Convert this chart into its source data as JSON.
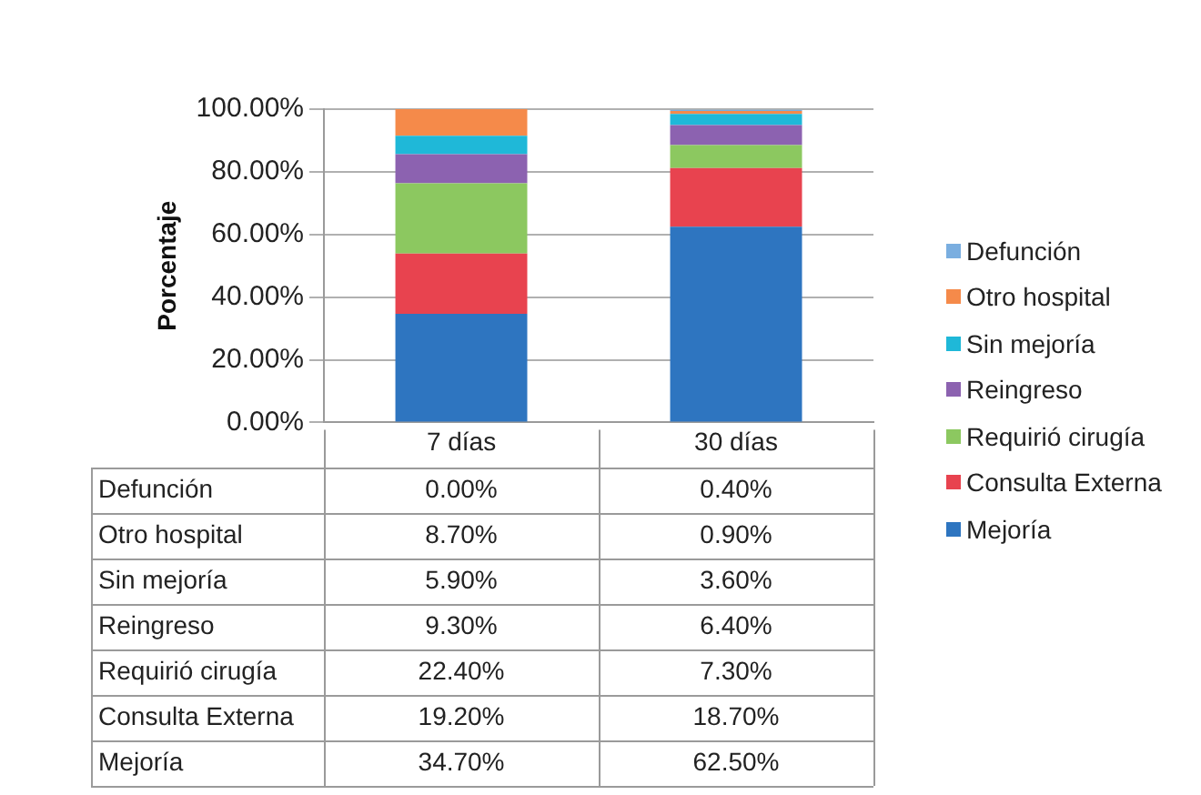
{
  "chart_data": {
    "type": "bar",
    "stacked": true,
    "ylabel": "Porcentaje",
    "categories": [
      "7 días",
      "30 días"
    ],
    "series": [
      {
        "name": "Mejoría",
        "color": "#2e75c0",
        "values": [
          34.7,
          62.5
        ],
        "value_labels": [
          "34.70%",
          "62.50%"
        ]
      },
      {
        "name": "Consulta Externa",
        "color": "#e8434f",
        "values": [
          19.2,
          18.7
        ],
        "value_labels": [
          "19.20%",
          "18.70%"
        ]
      },
      {
        "name": "Requirió cirugía",
        "color": "#8cc860",
        "values": [
          22.4,
          7.3
        ],
        "value_labels": [
          "22.40%",
          "7.30%"
        ]
      },
      {
        "name": "Reingreso",
        "color": "#8c62b0",
        "values": [
          9.3,
          6.4
        ],
        "value_labels": [
          "9.30%",
          "6.40%"
        ]
      },
      {
        "name": "Sin mejoría",
        "color": "#1fb8d8",
        "values": [
          5.9,
          3.6
        ],
        "value_labels": [
          "5.90%",
          "3.60%"
        ]
      },
      {
        "name": "Otro hospital",
        "color": "#f58a4a",
        "values": [
          8.7,
          0.9
        ],
        "value_labels": [
          "8.70%",
          "0.90%"
        ]
      },
      {
        "name": "Defunción",
        "color": "#7aaee0",
        "values": [
          0.0,
          0.4
        ],
        "value_labels": [
          "0.00%",
          "0.40%"
        ]
      }
    ],
    "ylim": [
      0,
      100
    ],
    "yticks": [
      {
        "value": 0,
        "label": "0.00%"
      },
      {
        "value": 20,
        "label": "20.00%"
      },
      {
        "value": 40,
        "label": "40.00%"
      },
      {
        "value": 60,
        "label": "60.00%"
      },
      {
        "value": 80,
        "label": "80.00%"
      },
      {
        "value": 100,
        "label": "100.00%"
      }
    ],
    "grid": "y",
    "legend": "right"
  }
}
